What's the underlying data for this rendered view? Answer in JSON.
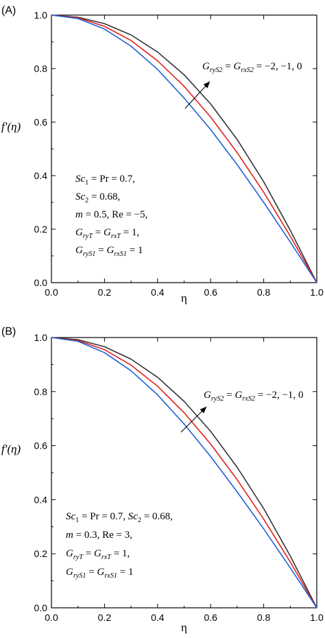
{
  "chart_data": [
    {
      "type": "line",
      "panel_label": "(A)",
      "xlabel": "η",
      "ylabel": "f′(η)",
      "xlim": [
        0.0,
        1.0
      ],
      "ylim": [
        0.0,
        1.0
      ],
      "x_ticks": [
        "0.0",
        "0.2",
        "0.4",
        "0.6",
        "0.8",
        "1.0"
      ],
      "y_ticks": [
        "0.0",
        "0.2",
        "0.4",
        "0.6",
        "0.8",
        "1.0"
      ],
      "grid": false,
      "x": [
        0.0,
        0.1,
        0.2,
        0.3,
        0.4,
        0.5,
        0.6,
        0.7,
        0.8,
        0.9,
        1.0
      ],
      "series": [
        {
          "color": "#333333",
          "values": [
            1.0,
            0.992,
            0.968,
            0.926,
            0.862,
            0.777,
            0.668,
            0.535,
            0.377,
            0.196,
            0.0
          ]
        },
        {
          "color": "#e0201c",
          "values": [
            1.0,
            0.99,
            0.958,
            0.905,
            0.829,
            0.734,
            0.619,
            0.486,
            0.338,
            0.174,
            0.0
          ]
        },
        {
          "color": "#1f5fd6",
          "values": [
            1.0,
            0.987,
            0.948,
            0.884,
            0.797,
            0.69,
            0.572,
            0.441,
            0.3,
            0.152,
            0.0
          ]
        }
      ],
      "annotation": {
        "arrow_label": "G_ryS2 = G_rxS2 = −2, −1, 0",
        "text_lines": [
          "Sc1 = Pr = 0.7,",
          "Sc2 = 0.68,",
          "m = 0.5, Re = −5,",
          "G_ryT = G_rxT = 1,",
          "G_ryS1 = G_rxS1 = 1"
        ]
      }
    },
    {
      "type": "line",
      "panel_label": "(B)",
      "xlabel": "η",
      "ylabel": "f′(η)",
      "xlim": [
        0.0,
        1.0
      ],
      "ylim": [
        0.0,
        1.0
      ],
      "x_ticks": [
        "0.0",
        "0.2",
        "0.4",
        "0.6",
        "0.8",
        "1.0"
      ],
      "y_ticks": [
        "0.0",
        "0.2",
        "0.4",
        "0.6",
        "0.8",
        "1.0"
      ],
      "grid": false,
      "x": [
        0.0,
        0.1,
        0.2,
        0.3,
        0.4,
        0.5,
        0.6,
        0.7,
        0.8,
        0.9,
        1.0
      ],
      "series": [
        {
          "color": "#333333",
          "values": [
            1.0,
            0.992,
            0.966,
            0.92,
            0.853,
            0.764,
            0.653,
            0.52,
            0.367,
            0.192,
            0.0
          ]
        },
        {
          "color": "#e0201c",
          "values": [
            1.0,
            0.989,
            0.955,
            0.898,
            0.82,
            0.722,
            0.606,
            0.474,
            0.328,
            0.17,
            0.0
          ]
        },
        {
          "color": "#1f5fd6",
          "values": [
            1.0,
            0.986,
            0.944,
            0.877,
            0.788,
            0.68,
            0.56,
            0.429,
            0.292,
            0.148,
            0.0
          ]
        }
      ],
      "annotation": {
        "arrow_label": "G_ryS2 = G_rxS2 = −2, −1, 0",
        "text_lines": [
          "Sc1 = Pr = 0.7, Sc2 = 0.68,",
          "m = 0.3, Re = 3,",
          "G_ryT = G_rxT = 1,",
          "G_ryS1 = G_rxS1 = 1"
        ]
      }
    }
  ]
}
